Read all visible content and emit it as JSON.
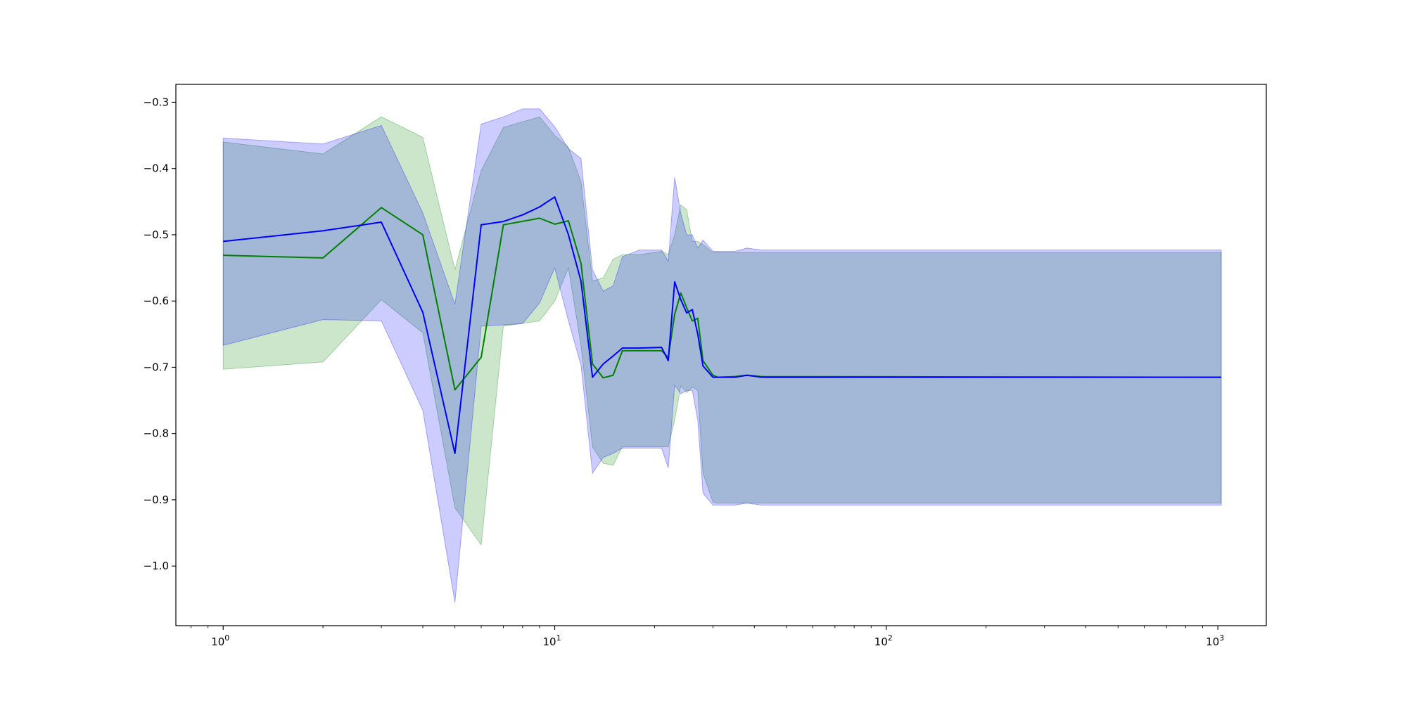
{
  "chart_data": {
    "type": "line",
    "title": "",
    "xlabel": "",
    "ylabel": "",
    "x_scale": "log",
    "xlim": [
      0.72,
      1400
    ],
    "ylim": [
      -1.09,
      -0.273
    ],
    "grid": false,
    "legend": "none",
    "x_ticks": [
      {
        "value": 1,
        "base": "10",
        "exp": "0"
      },
      {
        "value": 10,
        "base": "10",
        "exp": "1"
      },
      {
        "value": 100,
        "base": "10",
        "exp": "2"
      },
      {
        "value": 1000,
        "base": "10",
        "exp": "3"
      }
    ],
    "y_ticks": [
      {
        "value": -0.3,
        "label": "−0.3"
      },
      {
        "value": -0.4,
        "label": "−0.4"
      },
      {
        "value": -0.5,
        "label": "−0.5"
      },
      {
        "value": -0.6,
        "label": "−0.6"
      },
      {
        "value": -0.7,
        "label": "−0.7"
      },
      {
        "value": -0.8,
        "label": "−0.8"
      },
      {
        "value": -0.9,
        "label": "−0.9"
      },
      {
        "value": -1.0,
        "label": "−1.0"
      }
    ],
    "series": [
      {
        "color": "#008000",
        "band_color": "#008000",
        "band_opacity": 0.2,
        "x": [
          1,
          2,
          3,
          4,
          5,
          6,
          7,
          9,
          10,
          11,
          12,
          13,
          14,
          15,
          16,
          18,
          21,
          22,
          23,
          24,
          25,
          26,
          27,
          28,
          30,
          31,
          35,
          38,
          42,
          1024
        ],
        "mean": [
          -0.531,
          -0.535,
          -0.459,
          -0.5,
          -0.734,
          -0.685,
          -0.485,
          -0.475,
          -0.484,
          -0.479,
          -0.543,
          -0.695,
          -0.716,
          -0.712,
          -0.675,
          -0.675,
          -0.675,
          -0.685,
          -0.62,
          -0.588,
          -0.61,
          -0.63,
          -0.626,
          -0.69,
          -0.712,
          -0.715,
          -0.714,
          -0.712,
          -0.714,
          -0.715
        ],
        "upper": [
          -0.36,
          -0.378,
          -0.322,
          -0.353,
          -0.553,
          -0.403,
          -0.338,
          -0.322,
          -0.35,
          -0.368,
          -0.42,
          -0.57,
          -0.565,
          -0.537,
          -0.53,
          -0.53,
          -0.525,
          -0.53,
          -0.5,
          -0.455,
          -0.462,
          -0.51,
          -0.51,
          -0.515,
          -0.527,
          -0.527,
          -0.527,
          -0.527,
          -0.527,
          -0.527
        ],
        "lower": [
          -0.703,
          -0.692,
          -0.598,
          -0.648,
          -0.912,
          -0.968,
          -0.638,
          -0.63,
          -0.6,
          -0.55,
          -0.667,
          -0.82,
          -0.845,
          -0.848,
          -0.82,
          -0.82,
          -0.82,
          -0.82,
          -0.78,
          -0.728,
          -0.738,
          -0.73,
          -0.735,
          -0.86,
          -0.903,
          -0.905,
          -0.905,
          -0.905,
          -0.905,
          -0.905
        ]
      },
      {
        "color": "#0000ff",
        "band_color": "#0000ff",
        "band_opacity": 0.2,
        "x": [
          1,
          2,
          3,
          4,
          5,
          6,
          7,
          8,
          9,
          10,
          11,
          12,
          13,
          14,
          15,
          16,
          18,
          21,
          22,
          23,
          24,
          25,
          26,
          27,
          28,
          30,
          31,
          35,
          38,
          42,
          1024
        ],
        "mean": [
          -0.51,
          -0.494,
          -0.481,
          -0.617,
          -0.83,
          -0.485,
          -0.48,
          -0.47,
          -0.458,
          -0.443,
          -0.5,
          -0.57,
          -0.715,
          -0.695,
          -0.683,
          -0.671,
          -0.671,
          -0.67,
          -0.69,
          -0.571,
          -0.598,
          -0.618,
          -0.613,
          -0.65,
          -0.698,
          -0.715,
          -0.715,
          -0.715,
          -0.712,
          -0.715,
          -0.715
        ],
        "upper": [
          -0.354,
          -0.363,
          -0.335,
          -0.467,
          -0.605,
          -0.333,
          -0.322,
          -0.31,
          -0.31,
          -0.337,
          -0.37,
          -0.385,
          -0.553,
          -0.585,
          -0.577,
          -0.533,
          -0.523,
          -0.523,
          -0.54,
          -0.413,
          -0.468,
          -0.5,
          -0.5,
          -0.52,
          -0.508,
          -0.525,
          -0.525,
          -0.525,
          -0.52,
          -0.523,
          -0.523
        ],
        "lower": [
          -0.667,
          -0.628,
          -0.63,
          -0.765,
          -1.055,
          -0.638,
          -0.636,
          -0.634,
          -0.603,
          -0.55,
          -0.63,
          -0.697,
          -0.86,
          -0.836,
          -0.83,
          -0.822,
          -0.822,
          -0.822,
          -0.852,
          -0.727,
          -0.74,
          -0.735,
          -0.735,
          -0.78,
          -0.89,
          -0.908,
          -0.908,
          -0.908,
          -0.905,
          -0.908,
          -0.908
        ]
      }
    ]
  }
}
